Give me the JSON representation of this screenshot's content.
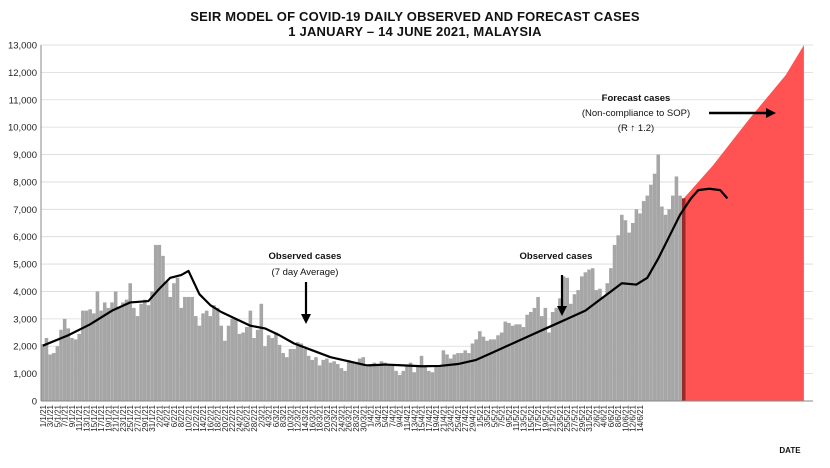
{
  "title_line1": "SEIR MODEL OF COVID-19 DAILY OBSERVED AND FORECAST CASES",
  "title_line2": "1 JANUARY – 14 JUNE 2021, MALAYSIA",
  "colors": {
    "bars": "#a6a6a6",
    "bars_recent": "#972a2a",
    "forecast_fill": "#ff5252",
    "forecast_highlight": "#a8221f",
    "line": "#000000",
    "grid": "#d9d9d9",
    "axis": "#888888"
  },
  "annotations": {
    "observed1_title": "Observed cases",
    "observed1_sub": "(7 day Average)",
    "observed2_title": "Observed cases",
    "forecast_title": "Forecast cases",
    "forecast_sub1": "(Non-compliance to SOP)",
    "forecast_sub2": "(R ↑ 1.2)"
  },
  "chart_data": {
    "type": "bar",
    "title": "SEIR MODEL OF COVID-19 DAILY OBSERVED AND FORECAST CASES 1 JANUARY – 14 JUNE 2021, MALAYSIA",
    "xlabel": "DATE",
    "ylabel": "",
    "ylim": [
      0,
      13000
    ],
    "ytick_labels": [
      "0",
      "1,000",
      "2,000",
      "3,000",
      "4,000",
      "5,000",
      "6,000",
      "7,000",
      "8,000",
      "9,000",
      "10,000",
      "11,000",
      "12,000",
      "13,000"
    ],
    "xtick_labels": [
      "1/1/21",
      "3/1/21",
      "5/1/21",
      "7/1/21",
      "9/1/21",
      "11/1/21",
      "13/1/21",
      "15/1/21",
      "17/1/21",
      "19/1/21",
      "21/1/21",
      "23/1/21",
      "25/1/21",
      "27/1/21",
      "29/1/21",
      "31/1/21",
      "2/2/21",
      "4/2/21",
      "6/2/21",
      "8/2/21",
      "10/2/21",
      "12/2/21",
      "14/2/21",
      "16/2/21",
      "18/2/21",
      "20/2/21",
      "22/2/21",
      "24/2/21",
      "26/2/21",
      "28/2/21",
      "2/3/21",
      "4/3/21",
      "6/3/21",
      "8/3/21",
      "10/3/21",
      "12/3/21",
      "14/3/21",
      "16/3/21",
      "18/3/21",
      "20/3/21",
      "22/3/21",
      "24/3/21",
      "26/3/21",
      "28/3/21",
      "30/3/21",
      "1/4/21",
      "3/4/21",
      "5/4/21",
      "7/4/21",
      "9/4/21",
      "11/4/21",
      "13/4/21",
      "15/4/21",
      "17/4/21",
      "19/4/21",
      "21/4/21",
      "23/4/21",
      "25/4/21",
      "27/4/21",
      "29/4/21",
      "1/5/21",
      "3/5/21",
      "5/5/21",
      "7/5/21",
      "9/5/21",
      "11/5/21",
      "13/5/21",
      "15/5/21",
      "17/5/21",
      "19/5/21",
      "21/5/21",
      "23/5/21",
      "25/5/21",
      "27/5/21",
      "29/5/21",
      "31/5/21",
      "2/6/21",
      "4/6/21",
      "6/6/21",
      "8/6/21",
      "10/6/21",
      "12/6/21",
      "14/6/21"
    ],
    "series": [
      {
        "name": "Observed cases",
        "type": "bar",
        "start_date": "1/1/21",
        "values": [
          2070,
          2300,
          1700,
          1750,
          2000,
          2600,
          3000,
          2650,
          2300,
          2250,
          2450,
          3300,
          3300,
          3350,
          3200,
          4000,
          3300,
          3600,
          3400,
          3600,
          4000,
          3450,
          3600,
          3700,
          4300,
          3400,
          3100,
          3550,
          3700,
          3500,
          4000,
          5700,
          5700,
          5300,
          4350,
          3800,
          4300,
          4500,
          3400,
          3800,
          3800,
          3800,
          3100,
          2750,
          3200,
          3300,
          3100,
          3500,
          3400,
          2750,
          2200,
          2750,
          3000,
          3000,
          2450,
          2500,
          2700,
          3300,
          2300,
          2600,
          3550,
          2000,
          2400,
          2300,
          2500,
          2050,
          1750,
          1600,
          1900,
          1900,
          2150,
          2100,
          1900,
          1650,
          1500,
          1600,
          1300,
          1500,
          1550,
          1400,
          1450,
          1350,
          1200,
          1100,
          1500,
          1400,
          1350,
          1550,
          1600,
          1250,
          1300,
          1400,
          1350,
          1450,
          1400,
          1300,
          1350,
          1100,
          950,
          1100,
          1300,
          1400,
          1050,
          1250,
          1650,
          1300,
          1100,
          1050,
          1300,
          1250,
          1850,
          1700,
          1550,
          1700,
          1750,
          1750,
          1850,
          1750,
          2100,
          2250,
          2550,
          2350,
          2200,
          2250,
          2250,
          2400,
          2500,
          2900,
          2850,
          2750,
          2800,
          2800,
          2700,
          3150,
          3250,
          3400,
          3800,
          3100,
          3400,
          2500,
          3250,
          3400,
          3750,
          4550,
          4500,
          3550,
          3900,
          4050,
          4550,
          4700,
          4800,
          4850,
          4050,
          4100,
          3800,
          4300,
          4850,
          5700,
          6050,
          6800,
          6600,
          6150,
          6500,
          7000,
          6850,
          7300,
          7500,
          7900,
          8300,
          9000,
          7100,
          6800,
          7000,
          7500,
          8200,
          7500,
          7400
        ]
      },
      {
        "name": "Observed cases (7 day Average)",
        "type": "line",
        "points": [
          [
            1,
            2020
          ],
          [
            8,
            2400
          ],
          [
            14,
            2800
          ],
          [
            20,
            3300
          ],
          [
            25,
            3600
          ],
          [
            30,
            3650
          ],
          [
            33,
            4100
          ],
          [
            36,
            4500
          ],
          [
            39,
            4600
          ],
          [
            41,
            4750
          ],
          [
            44,
            3900
          ],
          [
            47,
            3500
          ],
          [
            50,
            3250
          ],
          [
            54,
            3000
          ],
          [
            58,
            2750
          ],
          [
            62,
            2650
          ],
          [
            66,
            2400
          ],
          [
            70,
            2100
          ],
          [
            75,
            1850
          ],
          [
            80,
            1600
          ],
          [
            85,
            1450
          ],
          [
            90,
            1300
          ],
          [
            95,
            1330
          ],
          [
            100,
            1300
          ],
          [
            105,
            1270
          ],
          [
            110,
            1280
          ],
          [
            115,
            1350
          ],
          [
            120,
            1500
          ],
          [
            125,
            1800
          ],
          [
            130,
            2100
          ],
          [
            135,
            2400
          ],
          [
            140,
            2700
          ],
          [
            145,
            3000
          ],
          [
            150,
            3300
          ],
          [
            154,
            3700
          ],
          [
            157,
            4000
          ],
          [
            160,
            4300
          ],
          [
            164,
            4250
          ],
          [
            167,
            4500
          ],
          [
            170,
            5200
          ],
          [
            173,
            6000
          ],
          [
            176,
            6800
          ],
          [
            179,
            7400
          ],
          [
            181,
            7700
          ],
          [
            184,
            7750
          ],
          [
            187,
            7700
          ],
          [
            189,
            7400
          ]
        ]
      },
      {
        "name": "Forecast cases",
        "type": "area",
        "points": [
          [
            177,
            7400
          ],
          [
            185,
            8600
          ],
          [
            195,
            10300
          ],
          [
            205,
            11900
          ],
          [
            210,
            13000
          ]
        ]
      }
    ],
    "x_range_days": [
      1,
      212
    ],
    "grid": true,
    "legend": "none"
  }
}
